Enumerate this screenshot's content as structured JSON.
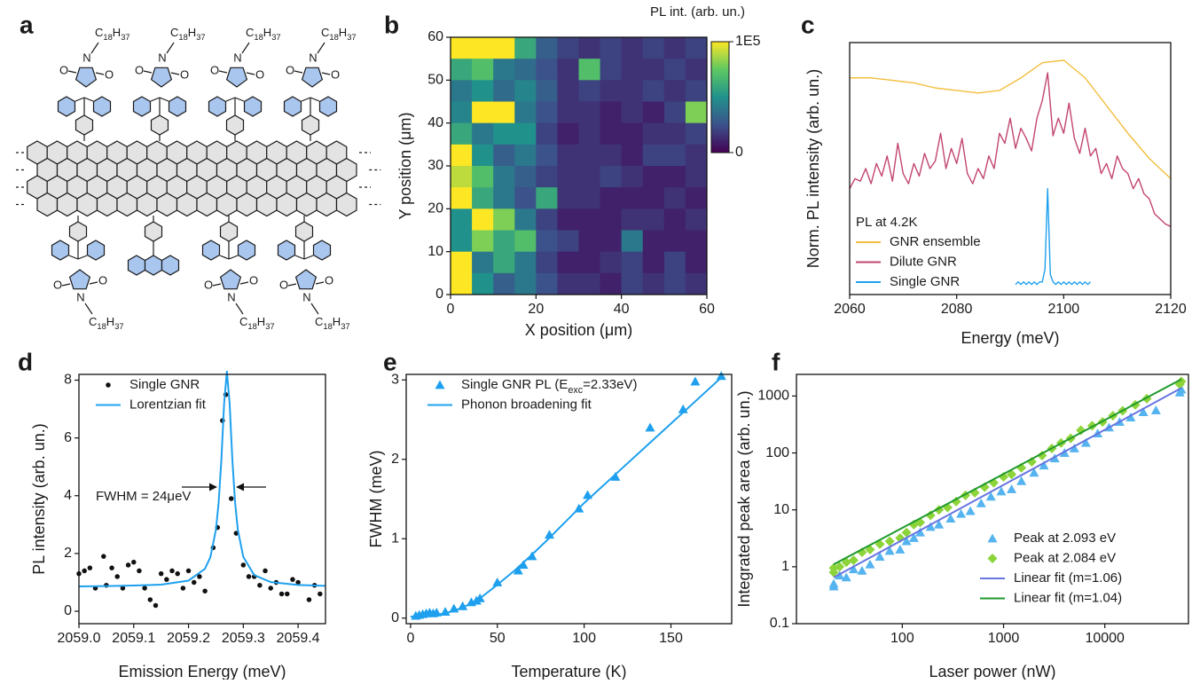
{
  "panel_labels": [
    "a",
    "b",
    "c",
    "d",
    "e",
    "f"
  ],
  "molecule": {
    "substituent": [
      "C",
      "18",
      "H",
      "37"
    ],
    "nitrogen": "N",
    "oxygen": "O"
  },
  "chart_data": [
    {
      "type": "heatmap",
      "colorbar_label": "PL int. (arb. un.)",
      "x_label": "X position (μm)",
      "y_label": "Y position (μm)",
      "colormap": "viridis",
      "clim": [
        0,
        100000
      ],
      "cticks": [
        0,
        {
          "value": 100000,
          "label": "1E5"
        }
      ],
      "xlim": [
        0,
        60
      ],
      "xticks": [
        0,
        20,
        40,
        60
      ],
      "ylim": [
        0,
        60
      ],
      "yticks": [
        0,
        10,
        20,
        30,
        40,
        50,
        60
      ],
      "x": [
        2.5,
        7.5,
        12.5,
        17.5,
        22.5,
        27.5,
        32.5,
        37.5,
        42.5,
        47.5,
        52.5,
        57.5
      ],
      "y": [
        57.5,
        52.5,
        47.5,
        42.5,
        37.5,
        32.5,
        27.5,
        22.5,
        17.5,
        12.5,
        7.5,
        2.5
      ],
      "values": [
        [
          100000,
          100000,
          100000,
          60000,
          30000,
          20000,
          15000,
          20000,
          15000,
          20000,
          15000,
          20000
        ],
        [
          60000,
          70000,
          40000,
          35000,
          25000,
          15000,
          70000,
          20000,
          15000,
          15000,
          20000,
          15000
        ],
        [
          40000,
          50000,
          35000,
          45000,
          30000,
          15000,
          20000,
          15000,
          15000,
          20000,
          15000,
          20000
        ],
        [
          45000,
          100000,
          100000,
          40000,
          25000,
          15000,
          15000,
          10000,
          15000,
          10000,
          20000,
          80000
        ],
        [
          60000,
          40000,
          50000,
          50000,
          20000,
          10000,
          15000,
          10000,
          10000,
          15000,
          15000,
          20000
        ],
        [
          100000,
          50000,
          30000,
          40000,
          25000,
          15000,
          15000,
          15000,
          10000,
          20000,
          20000,
          15000
        ],
        [
          90000,
          70000,
          40000,
          30000,
          20000,
          15000,
          15000,
          20000,
          15000,
          10000,
          10000,
          15000
        ],
        [
          100000,
          60000,
          40000,
          25000,
          60000,
          15000,
          15000,
          10000,
          10000,
          10000,
          15000,
          10000
        ],
        [
          50000,
          100000,
          80000,
          40000,
          20000,
          10000,
          10000,
          10000,
          15000,
          15000,
          10000,
          15000
        ],
        [
          50000,
          80000,
          60000,
          70000,
          25000,
          20000,
          10000,
          10000,
          40000,
          10000,
          10000,
          10000
        ],
        [
          100000,
          40000,
          60000,
          40000,
          20000,
          10000,
          10000,
          15000,
          20000,
          10000,
          20000,
          10000
        ],
        [
          100000,
          50000,
          30000,
          40000,
          25000,
          15000,
          15000,
          10000,
          20000,
          15000,
          20000,
          15000
        ]
      ]
    },
    {
      "type": "line",
      "x_label": "Energy (meV)",
      "y_label": "Norm. PL intensity (arb. un.)",
      "annotation": "PL at 4.2K",
      "xlim": [
        2060,
        2120
      ],
      "xticks": [
        2060,
        2080,
        2100,
        2120
      ],
      "ylim": [
        0,
        1
      ],
      "series": [
        {
          "name": "GNR ensemble",
          "color": "#f2be3c",
          "style": "line",
          "x": [
            2060,
            2064,
            2068,
            2072,
            2076,
            2080,
            2084,
            2088,
            2092,
            2096,
            2100,
            2104,
            2108,
            2112,
            2116,
            2120
          ],
          "values": [
            0.86,
            0.86,
            0.85,
            0.84,
            0.82,
            0.81,
            0.8,
            0.81,
            0.86,
            0.92,
            0.93,
            0.86,
            0.75,
            0.64,
            0.54,
            0.46
          ]
        },
        {
          "name": "Dilute GNR",
          "color": "#c2456f",
          "style": "line",
          "x": [
            2060,
            2061,
            2062,
            2063,
            2064,
            2065,
            2066,
            2067,
            2068,
            2069,
            2070,
            2071,
            2072,
            2073,
            2074,
            2075,
            2076,
            2077,
            2078,
            2079,
            2080,
            2081,
            2082,
            2083,
            2084,
            2085,
            2086,
            2087,
            2088,
            2089,
            2090,
            2091,
            2092,
            2093,
            2094,
            2095,
            2096,
            2097,
            2098,
            2099,
            2100,
            2101,
            2102,
            2103,
            2104,
            2105,
            2106,
            2107,
            2108,
            2109,
            2110,
            2111,
            2112,
            2113,
            2114,
            2115,
            2116,
            2117,
            2118,
            2119,
            2120
          ],
          "values": [
            0.42,
            0.46,
            0.45,
            0.5,
            0.44,
            0.52,
            0.47,
            0.55,
            0.45,
            0.6,
            0.48,
            0.44,
            0.52,
            0.47,
            0.56,
            0.5,
            0.53,
            0.64,
            0.5,
            0.58,
            0.52,
            0.62,
            0.48,
            0.44,
            0.5,
            0.46,
            0.55,
            0.5,
            0.64,
            0.6,
            0.7,
            0.58,
            0.66,
            0.62,
            0.57,
            0.7,
            0.77,
            0.88,
            0.63,
            0.7,
            0.64,
            0.76,
            0.62,
            0.56,
            0.66,
            0.55,
            0.58,
            0.48,
            0.52,
            0.46,
            0.55,
            0.5,
            0.48,
            0.42,
            0.46,
            0.4,
            0.38,
            0.32,
            0.3,
            0.28,
            0.27
          ]
        },
        {
          "name": "Single GNR",
          "color": "#1ea0ee",
          "style": "line",
          "x": [
            2091,
            2091.5,
            2092,
            2092.5,
            2093,
            2093.5,
            2094,
            2094.5,
            2095,
            2095.5,
            2096,
            2096.5,
            2097,
            2097.5,
            2098,
            2098.5,
            2099,
            2099.5,
            2100,
            2100.5,
            2101,
            2101.5,
            2102,
            2102.5,
            2103,
            2103.5,
            2104,
            2104.5,
            2105
          ],
          "values": [
            0.04,
            0.05,
            0.04,
            0.05,
            0.04,
            0.05,
            0.04,
            0.05,
            0.04,
            0.05,
            0.05,
            0.1,
            0.42,
            0.08,
            0.05,
            0.04,
            0.05,
            0.04,
            0.05,
            0.04,
            0.05,
            0.04,
            0.05,
            0.04,
            0.05,
            0.04,
            0.05,
            0.04,
            0.05
          ]
        }
      ]
    },
    {
      "type": "scatter",
      "x_label": "Emission Energy (meV)",
      "y_label": "PL intensity (arb. un.)",
      "annotation": "FWHM = 24μeV",
      "xlim": [
        2059,
        2059.45
      ],
      "xticks": [
        {
          "value": 2059,
          "label": "2059.0"
        },
        2059.1,
        2059.2,
        2059.3,
        2059.4
      ],
      "ylim": [
        -0.43,
        8.2
      ],
      "yticks": [
        0,
        2,
        4,
        6,
        8
      ],
      "series": [
        {
          "name": "Single GNR",
          "color": "#111111",
          "style": "markers",
          "marker": "circle",
          "x": [
            2059,
            2059.01,
            2059.02,
            2059.03,
            2059.045,
            2059.05,
            2059.06,
            2059.07,
            2059.08,
            2059.09,
            2059.1,
            2059.11,
            2059.12,
            2059.13,
            2059.14,
            2059.15,
            2059.16,
            2059.17,
            2059.18,
            2059.19,
            2059.2,
            2059.21,
            2059.22,
            2059.23,
            2059.245,
            2059.253,
            2059.262,
            2059.268,
            2059.278,
            2059.287,
            2059.3,
            2059.31,
            2059.32,
            2059.33,
            2059.34,
            2059.35,
            2059.36,
            2059.37,
            2059.38,
            2059.39,
            2059.4,
            2059.42,
            2059.43,
            2059.44
          ],
          "values": [
            1.3,
            1.4,
            1.5,
            0.8,
            1.9,
            0.9,
            1.5,
            1.2,
            0.8,
            1.6,
            1.7,
            1.4,
            0.8,
            0.4,
            0.2,
            1.3,
            1.1,
            1.4,
            1.3,
            0.8,
            1.4,
            1.0,
            1.2,
            0.7,
            2.2,
            2.9,
            6.6,
            7.5,
            3.9,
            2.7,
            1.6,
            1.2,
            1.2,
            0.9,
            1.4,
            0.8,
            1.0,
            0.6,
            0.6,
            1.1,
            1.0,
            0.4,
            0.9,
            0.6
          ]
        },
        {
          "name": "Lorentzian fit",
          "color": "#1ea0ee",
          "style": "line",
          "x": [
            2059,
            2059.05,
            2059.1,
            2059.15,
            2059.2,
            2059.23,
            2059.24,
            2059.25,
            2059.255,
            2059.26,
            2059.265,
            2059.27,
            2059.275,
            2059.28,
            2059.285,
            2059.29,
            2059.3,
            2059.32,
            2059.35,
            2059.4,
            2059.45
          ],
          "values": [
            0.86,
            0.87,
            0.89,
            0.92,
            1.06,
            1.47,
            1.88,
            2.82,
            3.76,
            5.25,
            7.2,
            8.3,
            7.2,
            5.25,
            3.76,
            2.82,
            1.88,
            1.25,
            1.01,
            0.91,
            0.88
          ]
        }
      ]
    },
    {
      "type": "scatter",
      "x_label": "Temperature (K)",
      "y_label": "FWHM (meV)",
      "xlim": [
        -2.5,
        185
      ],
      "xticks": [
        0,
        50,
        100,
        150
      ],
      "ylim": [
        -0.07,
        3.07
      ],
      "yticks": [
        0,
        1,
        2,
        3
      ],
      "series": [
        {
          "name": [
            "Single GNR PL (E",
            "exc",
            "=2.33eV)"
          ],
          "color": "#1ea0ee",
          "style": "markers",
          "marker": "triangle",
          "x": [
            3,
            5,
            7,
            9,
            11,
            13,
            15,
            20,
            25,
            30,
            35,
            38,
            40,
            50,
            62,
            65,
            70,
            80,
            97,
            102,
            118,
            138,
            157,
            164,
            179
          ],
          "values": [
            0.03,
            0.04,
            0.05,
            0.06,
            0.07,
            0.06,
            0.07,
            0.08,
            0.12,
            0.15,
            0.2,
            0.22,
            0.25,
            0.45,
            0.6,
            0.67,
            0.78,
            1.05,
            1.38,
            1.55,
            1.78,
            2.4,
            2.63,
            2.98,
            3.05
          ]
        },
        {
          "name": "Phonon broadening fit",
          "color": "#1ea0ee",
          "style": "line",
          "x": [
            0,
            10,
            20,
            30,
            40,
            50,
            60,
            70,
            80,
            90,
            100,
            110,
            120,
            130,
            140,
            150,
            160,
            170,
            180
          ],
          "values": [
            0.02,
            0.03,
            0.06,
            0.13,
            0.25,
            0.42,
            0.6,
            0.8,
            1.01,
            1.23,
            1.45,
            1.65,
            1.85,
            2.05,
            2.25,
            2.45,
            2.65,
            2.85,
            3.05
          ]
        }
      ]
    },
    {
      "type": "scatter",
      "x_label": "Laser power (nW)",
      "y_label": "Integrated peak area (arb. un.)",
      "xscale": "log",
      "yscale": "log",
      "xlim": [
        9,
        67000
      ],
      "xticks": [
        100,
        1000,
        10000
      ],
      "ylim": [
        0.1,
        2400
      ],
      "yticks": [
        0.1,
        1,
        10,
        100,
        1000
      ],
      "series": [
        {
          "name": "Peak at 2.093 eV",
          "color": "#55b4f0",
          "style": "markers",
          "marker": "triangle",
          "x": [
            21,
            21,
            24,
            28,
            33,
            40,
            48,
            60,
            75,
            95,
            110,
            130,
            150,
            190,
            230,
            300,
            380,
            470,
            600,
            750,
            950,
            1200,
            1500,
            2000,
            2500,
            3200,
            4000,
            5000,
            6500,
            8500,
            11000,
            14000,
            18000,
            24000,
            32000,
            55000,
            57000
          ],
          "values": [
            0.45,
            0.5,
            0.7,
            0.65,
            0.9,
            0.85,
            1.1,
            1.5,
            1.9,
            2.0,
            2.8,
            3.2,
            4.0,
            5.0,
            5.5,
            7.0,
            8.5,
            9.5,
            13,
            17,
            21,
            23,
            32,
            45,
            60,
            80,
            100,
            120,
            150,
            220,
            280,
            350,
            420,
            520,
            560,
            1150,
            1300
          ]
        },
        {
          "name": "Peak at 2.084 eV",
          "color": "#8cd43a",
          "style": "markers",
          "marker": "diamond",
          "x": [
            21,
            21,
            24,
            28,
            33,
            40,
            48,
            60,
            75,
            95,
            110,
            130,
            150,
            190,
            230,
            280,
            340,
            420,
            520,
            650,
            800,
            1000,
            1200,
            1500,
            1900,
            2400,
            3000,
            3700,
            4600,
            5800,
            7500,
            9500,
            12000,
            15000,
            20000,
            26000,
            55000,
            57000
          ],
          "values": [
            0.8,
            0.95,
            1.0,
            1.2,
            1.3,
            1.8,
            2.0,
            2.5,
            2.8,
            3.2,
            4.0,
            5.5,
            6.0,
            8.0,
            10,
            11,
            14,
            18,
            20,
            25,
            30,
            38,
            42,
            55,
            70,
            90,
            120,
            150,
            180,
            250,
            300,
            350,
            450,
            550,
            700,
            900,
            1600,
            1800
          ]
        },
        {
          "name": "Linear fit (m=1.06)",
          "color": "#6675e0",
          "style": "line",
          "x": [
            21,
            57000
          ],
          "values": [
            0.65,
            1380
          ]
        },
        {
          "name": "Linear fit (m=1.04)",
          "color": "#1f9a2c",
          "style": "line",
          "x": [
            21,
            57000
          ],
          "values": [
            1.1,
            1970
          ]
        }
      ]
    }
  ]
}
